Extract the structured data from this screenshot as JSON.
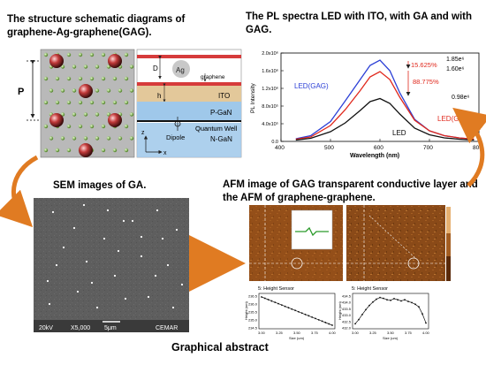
{
  "captions": {
    "gag_title": "The structure schematic diagrams of graphene-Ag-graphene(GAG).",
    "pl_title": "The PL spectra LED with ITO, with GA and with GAG.",
    "sem_title": "SEM images of GA.",
    "afm_title": "AFM image of GAG transparent conductive layer and the AFM of graphene-graphene.",
    "footer": "Graphical abstract"
  },
  "schematic": {
    "period_label": "P",
    "labels": {
      "D": "D",
      "Ag": "Ag",
      "graphene": "graphene",
      "h": "h",
      "ITO": "ITO",
      "pgan": "P-GaN",
      "qw": "Quantum Well",
      "dipole": "Dipole",
      "ngan": "N-GaN",
      "axis_x": "x",
      "axis_z": "z"
    }
  },
  "sem": {
    "voltage": "20kV",
    "mag": "X5,000",
    "scale": "5μm",
    "org": "CEMAR"
  },
  "afm": {
    "panel1_title": "5: Height Sensor",
    "panel2_title": "5: Height Sensor",
    "xlabel": "Size (um)",
    "ylabel": "Height (nm)",
    "p1_y_ticks": [
      "236.5",
      "236.0",
      "235.5",
      "235.0",
      "234.5"
    ],
    "p2_y_ticks": [
      "434.5",
      "434.0",
      "433.5",
      "433.0",
      "432.5",
      "432.0"
    ],
    "x_ticks": [
      "3.00",
      "3.25",
      "3.50",
      "3.75",
      "4.00"
    ]
  },
  "chart_data": {
    "type": "line",
    "title": "The PL spectra LED with ITO, with GA and with GAG.",
    "xlabel": "Wavelength (nm)",
    "ylabel": "PL Intensity",
    "xlim": [
      400,
      800
    ],
    "ylim": [
      0,
      2.0
    ],
    "x_ticks": [
      "400",
      "500",
      "600",
      "700",
      "800"
    ],
    "y_ticks": [
      "0.0",
      "4.0x10⁵",
      "8.0x10⁵",
      "1.2x10⁶",
      "1.6x10⁶",
      "2.0x10⁶"
    ],
    "x": [
      430,
      460,
      500,
      530,
      560,
      580,
      600,
      620,
      640,
      670,
      700,
      730,
      760,
      790
    ],
    "series": [
      {
        "name": "LED(GAG)",
        "color": "#2b3fd6",
        "values": [
          0.06,
          0.13,
          0.45,
          0.92,
          1.4,
          1.72,
          1.84,
          1.6,
          1.1,
          0.5,
          0.24,
          0.13,
          0.08,
          0.05
        ]
      },
      {
        "name": "LED(GA)",
        "color": "#e0281c",
        "values": [
          0.05,
          0.1,
          0.36,
          0.72,
          1.15,
          1.46,
          1.58,
          1.4,
          1.0,
          0.48,
          0.24,
          0.13,
          0.08,
          0.05
        ]
      },
      {
        "name": "LED",
        "color": "#111111",
        "values": [
          0.03,
          0.07,
          0.22,
          0.42,
          0.7,
          0.9,
          0.97,
          0.86,
          0.62,
          0.3,
          0.15,
          0.08,
          0.05,
          0.03
        ]
      }
    ],
    "annotations": {
      "v_gag": "1.85e⁶",
      "v_ga": "1.60e⁶",
      "v_led": "0.98e⁶",
      "pct1": "15.625%",
      "pct2": "88.775%"
    },
    "label_gag": "LED(GAG)",
    "label_ga": "LED(GA)",
    "label_led": "LED"
  }
}
